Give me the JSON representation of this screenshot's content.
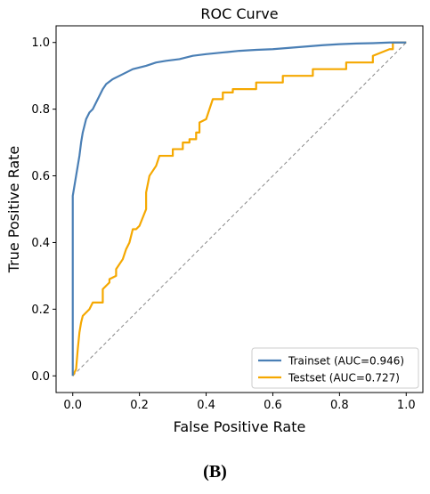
{
  "chart_data": {
    "type": "line",
    "title": "ROC Curve",
    "xlabel": "False Positive Rate",
    "ylabel": "True Positive Rate",
    "xlim": [
      -0.05,
      1.05
    ],
    "ylim": [
      -0.05,
      1.05
    ],
    "xticks": [
      0.0,
      0.2,
      0.4,
      0.6,
      0.8,
      1.0
    ],
    "yticks": [
      0.0,
      0.2,
      0.4,
      0.6,
      0.8,
      1.0
    ],
    "xtick_labels": [
      "0.0",
      "0.2",
      "0.4",
      "0.6",
      "0.8",
      "1.0"
    ],
    "ytick_labels": [
      "0.0",
      "0.2",
      "0.4",
      "0.6",
      "0.8",
      "1.0"
    ],
    "grid": false,
    "legend_position": "lower-right",
    "series": [
      {
        "name": "Trainset (AUC=0.946)",
        "color": "#4a7fb5",
        "x": [
          0.0,
          0.0,
          0.005,
          0.01,
          0.015,
          0.02,
          0.025,
          0.03,
          0.035,
          0.04,
          0.05,
          0.06,
          0.07,
          0.08,
          0.09,
          0.1,
          0.12,
          0.14,
          0.16,
          0.18,
          0.2,
          0.22,
          0.25,
          0.28,
          0.32,
          0.36,
          0.4,
          0.45,
          0.5,
          0.55,
          0.6,
          0.65,
          0.7,
          0.75,
          0.8,
          0.85,
          0.9,
          0.95,
          1.0
        ],
        "y": [
          0.0,
          0.54,
          0.57,
          0.6,
          0.63,
          0.66,
          0.7,
          0.73,
          0.75,
          0.77,
          0.79,
          0.8,
          0.82,
          0.84,
          0.86,
          0.875,
          0.89,
          0.9,
          0.91,
          0.92,
          0.925,
          0.93,
          0.94,
          0.945,
          0.95,
          0.96,
          0.965,
          0.97,
          0.975,
          0.978,
          0.98,
          0.984,
          0.988,
          0.992,
          0.995,
          0.997,
          0.998,
          1.0,
          1.0
        ]
      },
      {
        "name": "Testset (AUC=0.727)",
        "color": "#f5a800",
        "x": [
          0.0,
          0.01,
          0.015,
          0.02,
          0.025,
          0.03,
          0.04,
          0.05,
          0.06,
          0.09,
          0.09,
          0.1,
          0.11,
          0.11,
          0.13,
          0.13,
          0.15,
          0.16,
          0.17,
          0.18,
          0.19,
          0.2,
          0.22,
          0.22,
          0.23,
          0.25,
          0.26,
          0.27,
          0.28,
          0.3,
          0.3,
          0.33,
          0.33,
          0.35,
          0.35,
          0.37,
          0.37,
          0.38,
          0.38,
          0.4,
          0.41,
          0.42,
          0.42,
          0.45,
          0.45,
          0.48,
          0.48,
          0.55,
          0.55,
          0.63,
          0.63,
          0.72,
          0.72,
          0.82,
          0.82,
          0.9,
          0.9,
          0.95,
          0.96,
          0.96,
          1.0
        ],
        "y": [
          0.0,
          0.02,
          0.08,
          0.13,
          0.16,
          0.18,
          0.19,
          0.2,
          0.22,
          0.22,
          0.26,
          0.27,
          0.28,
          0.29,
          0.3,
          0.32,
          0.35,
          0.38,
          0.4,
          0.44,
          0.44,
          0.45,
          0.5,
          0.55,
          0.6,
          0.63,
          0.66,
          0.66,
          0.66,
          0.66,
          0.68,
          0.68,
          0.7,
          0.7,
          0.71,
          0.71,
          0.73,
          0.73,
          0.76,
          0.77,
          0.8,
          0.83,
          0.83,
          0.83,
          0.85,
          0.85,
          0.86,
          0.86,
          0.88,
          0.88,
          0.9,
          0.9,
          0.92,
          0.92,
          0.94,
          0.94,
          0.96,
          0.98,
          0.98,
          1.0,
          1.0
        ]
      },
      {
        "name": "",
        "color": "#888888",
        "style": "dashed",
        "x": [
          0.0,
          1.0
        ],
        "y": [
          0.0,
          1.0
        ]
      }
    ]
  },
  "panel_label": "(B)"
}
